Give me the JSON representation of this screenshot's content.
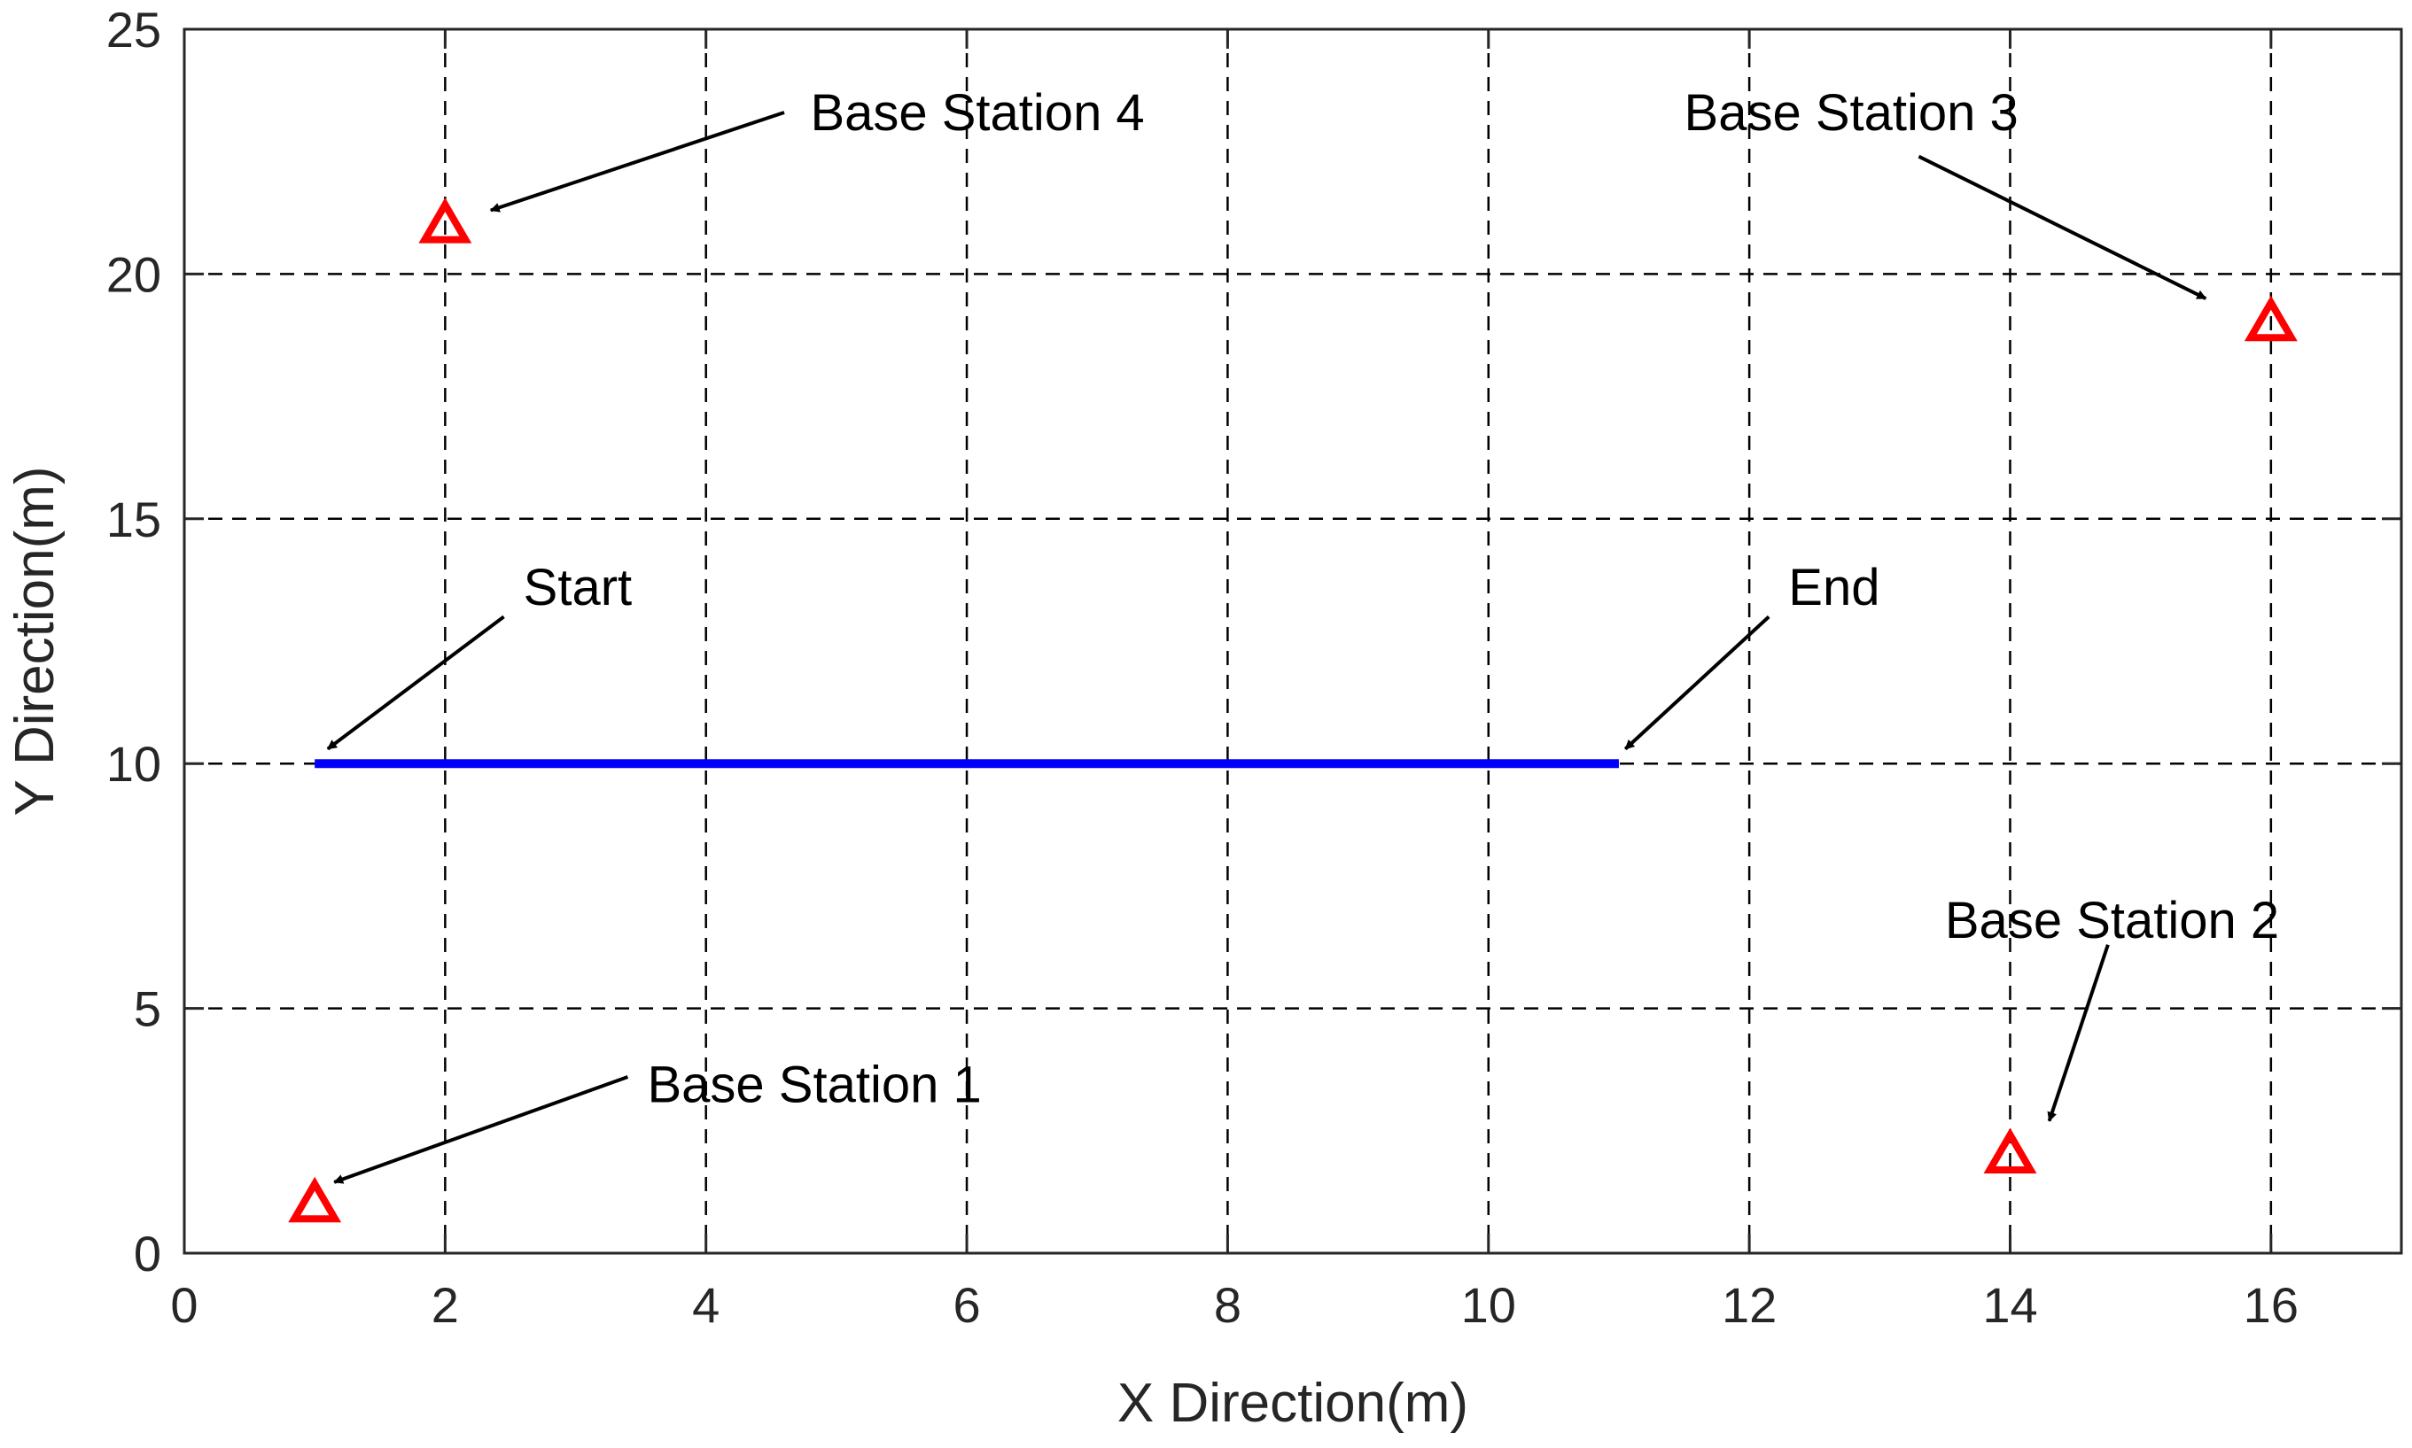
{
  "chart_data": {
    "type": "scatter",
    "title": "",
    "xlabel": "X Direction(m)",
    "ylabel": "Y Direction(m)",
    "xlim": [
      0,
      17
    ],
    "ylim": [
      0,
      25
    ],
    "x_ticks": [
      0,
      2,
      4,
      6,
      8,
      10,
      12,
      14,
      16
    ],
    "y_ticks": [
      0,
      5,
      10,
      15,
      20,
      25
    ],
    "grid": true,
    "grid_style": "dashed",
    "path": {
      "color": "#0000ff",
      "points": [
        [
          1,
          10
        ],
        [
          11,
          10
        ]
      ]
    },
    "base_stations": {
      "color": "#ff0000",
      "marker": "triangle",
      "points": [
        {
          "x": 1,
          "y": 1
        },
        {
          "x": 14,
          "y": 2
        },
        {
          "x": 16,
          "y": 19
        },
        {
          "x": 2,
          "y": 21
        }
      ]
    },
    "annotations": [
      {
        "text": "Base Station 4",
        "text_x": 4.8,
        "text_y": 23.3,
        "tail_x": 4.6,
        "tail_y": 23.3,
        "head_x": 2.35,
        "head_y": 21.3
      },
      {
        "text": "Base Station 3",
        "text_x": 11.5,
        "text_y": 23.3,
        "tail_x": 13.3,
        "tail_y": 22.4,
        "head_x": 15.5,
        "head_y": 19.5
      },
      {
        "text": "Start",
        "text_x": 2.6,
        "text_y": 13.6,
        "tail_x": 2.45,
        "tail_y": 13.0,
        "head_x": 1.1,
        "head_y": 10.3
      },
      {
        "text": "End",
        "text_x": 12.3,
        "text_y": 13.6,
        "tail_x": 12.15,
        "tail_y": 13.0,
        "head_x": 11.05,
        "head_y": 10.3
      },
      {
        "text": "Base Station 2",
        "text_x": 13.5,
        "text_y": 6.8,
        "tail_x": 14.75,
        "tail_y": 6.3,
        "head_x": 14.3,
        "head_y": 2.7
      },
      {
        "text": "Base Station 1",
        "text_x": 3.55,
        "text_y": 3.45,
        "tail_x": 3.4,
        "tail_y": 3.6,
        "head_x": 1.15,
        "head_y": 1.45
      }
    ]
  }
}
